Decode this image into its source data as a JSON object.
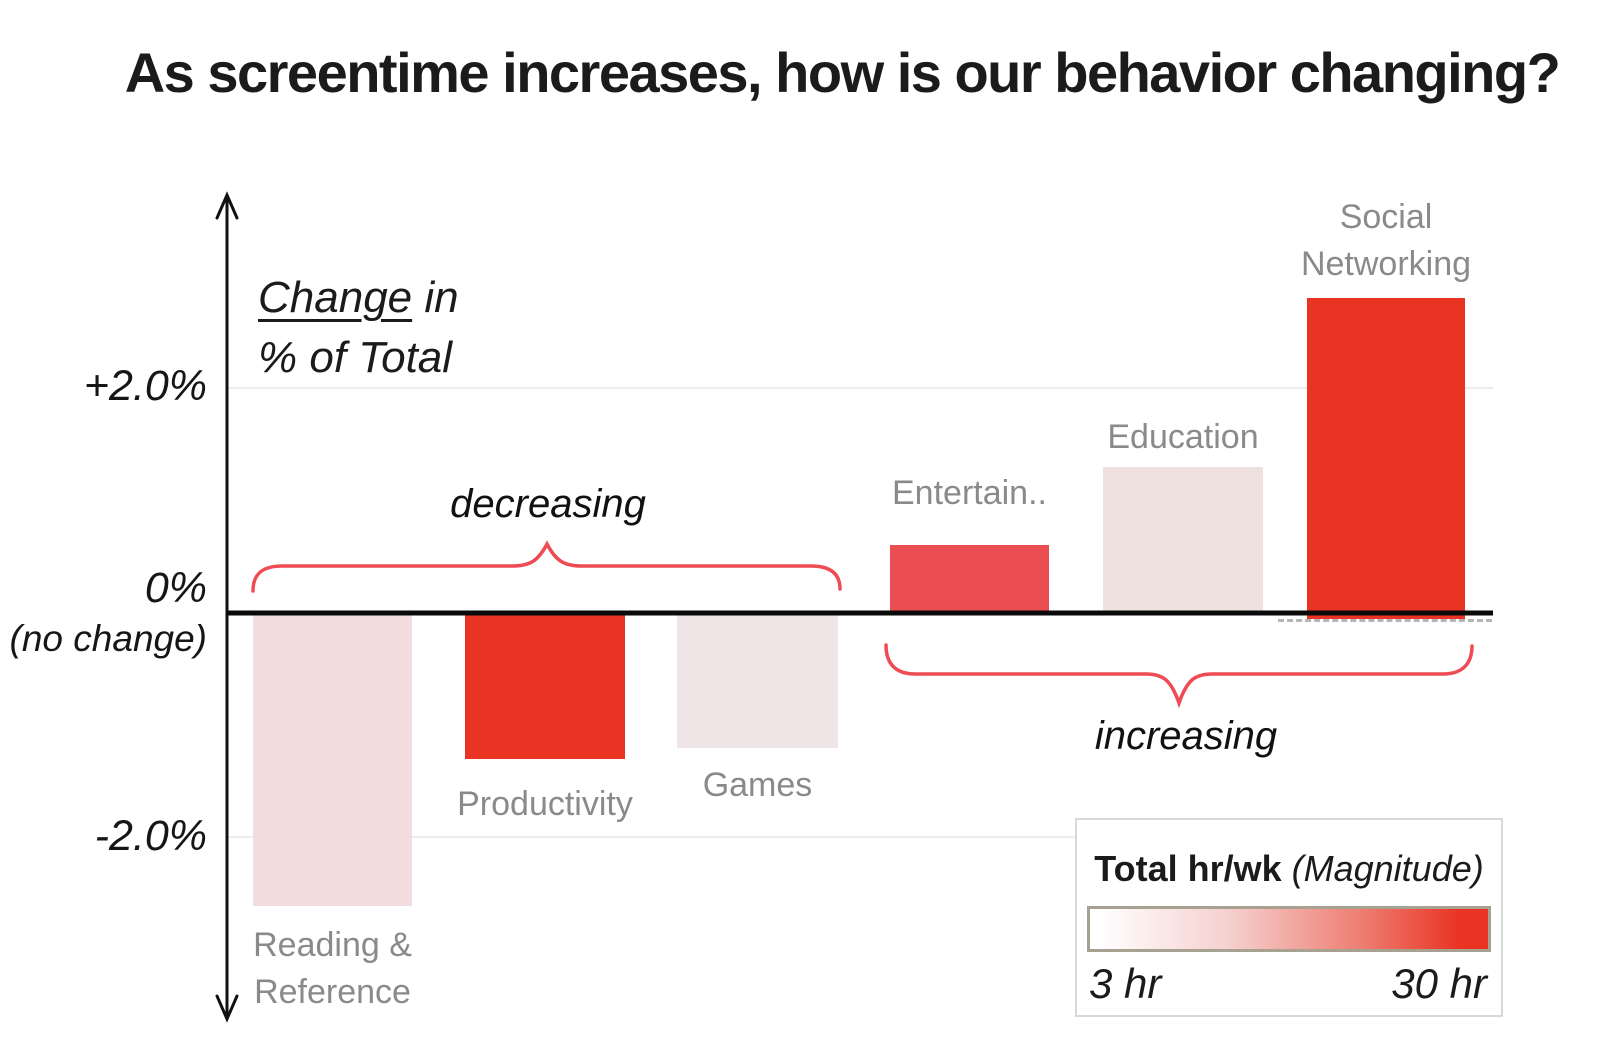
{
  "title": "As screentime increases, how is our behavior changing?",
  "y_axis": {
    "annotation": {
      "underlined": "Change",
      "rest_line1": " in",
      "line2": "% of Total"
    },
    "ticks": {
      "plus": "+2.0%",
      "zero": "0%",
      "zero_note": "(no change)",
      "minus": "-2.0%"
    }
  },
  "annotations": {
    "decreasing": "decreasing",
    "increasing": "increasing"
  },
  "legend": {
    "title_main": "Total hr/wk",
    "title_note": "(Magnitude)",
    "min_label": "3 hr",
    "max_label": "30 hr",
    "gradient_start_color": "#ffffff",
    "gradient_end_color": "#e93323"
  },
  "colors": {
    "bright_red": "#e93323",
    "rose_red": "#ea4d52",
    "light_pink": "#f2dcde",
    "pale_pink": "#efe5e6",
    "pale_pink_2": "#f0e1e1",
    "brace_red": "#ee4b54",
    "category_label_gray": "#8a8a8a"
  },
  "chart_data": {
    "type": "bar",
    "title": "As screentime increases, how is our behavior changing?",
    "ylabel": "Change in % of Total",
    "yticks": [
      "+2.0%",
      "0% (no change)",
      "-2.0%"
    ],
    "ylim": [
      -3.3,
      3.3
    ],
    "grid": "light horizontal gridlines at +2.0% and -2.0%; bold black zero line",
    "legend_position": "bottom-right box",
    "color_encoding": {
      "label": "Total hr/wk (Magnitude)",
      "min": "3 hr",
      "max": "30 hr"
    },
    "categories": [
      "Reading & Reference",
      "Productivity",
      "Games",
      "Entertain..",
      "Education",
      "Social Networking"
    ],
    "values": [
      -2.6,
      -1.3,
      -1.2,
      0.6,
      1.3,
      2.8
    ],
    "bars": [
      {
        "category": "Reading & Reference",
        "value": -2.6,
        "label_lines": [
          "Reading &",
          "Reference"
        ],
        "color": "#f2dcde"
      },
      {
        "category": "Productivity",
        "value": -1.3,
        "label_lines": [
          "Productivity"
        ],
        "color": "#e93323"
      },
      {
        "category": "Games",
        "value": -1.2,
        "label_lines": [
          "Games"
        ],
        "color": "#efe5e6"
      },
      {
        "category": "Entertain..",
        "value": 0.6,
        "label_lines": [
          "Entertain.."
        ],
        "color": "#ea4d52"
      },
      {
        "category": "Education",
        "value": 1.3,
        "label_lines": [
          "Education"
        ],
        "color": "#f0e1e1"
      },
      {
        "category": "Social Networking",
        "value": 2.8,
        "label_lines": [
          "Social",
          "Networking"
        ],
        "color": "#e93323"
      }
    ],
    "group_annotations": [
      {
        "text": "decreasing",
        "applies_to": [
          "Reading & Reference",
          "Productivity",
          "Games"
        ]
      },
      {
        "text": "increasing",
        "applies_to": [
          "Entertain..",
          "Education",
          "Social Networking"
        ]
      }
    ]
  }
}
